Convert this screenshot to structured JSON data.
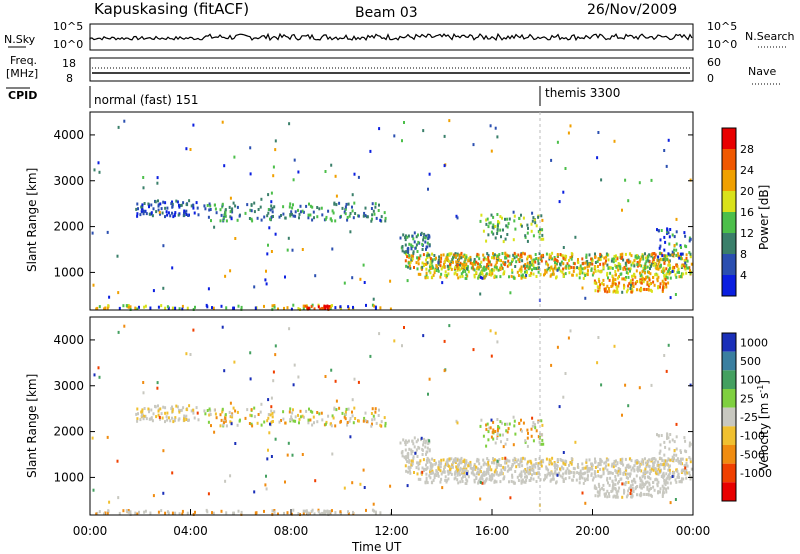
{
  "header": {
    "station": "Kapuskasing (fitACF)",
    "beam": "Beam 03",
    "date": "26/Nov/2009"
  },
  "colors": {
    "power_scale": [
      "#0b1fe0",
      "#2b4fb0",
      "#3a7f6a",
      "#4cbf4a",
      "#d9e21a",
      "#f0a000",
      "#f05800",
      "#e80000"
    ],
    "velocity_scale": [
      "#1a2fb8",
      "#3a7fa0",
      "#44a060",
      "#7fd040",
      "#c8c8c0",
      "#f0c030",
      "#f08c10",
      "#f04000",
      "#e80000"
    ]
  },
  "chart_data": [
    {
      "type": "line",
      "name": "noise-panel",
      "left_label": "N.Sky",
      "right_label": "N.Search",
      "left_ticks": [
        "10^5",
        "10^0"
      ],
      "right_ticks": [
        "10^5",
        "10^0"
      ],
      "x": [
        "00:00",
        "24:00"
      ]
    },
    {
      "type": "line",
      "name": "frequency-panel",
      "left_label_1": "Freq.",
      "left_label_2": "[MHz]",
      "right_label": "Nave",
      "left_ticks": [
        "18",
        "8"
      ],
      "right_ticks": [
        "60",
        "0"
      ]
    },
    {
      "type": "table",
      "name": "cpid-panel",
      "label": "CPID",
      "segments": [
        {
          "start_hour": 0,
          "text": "normal (fast) 151"
        },
        {
          "start_hour": 18,
          "text": "themis 3300"
        }
      ]
    },
    {
      "type": "heatmap",
      "name": "power-panel",
      "ylabel": "Slant Range [km]",
      "y_ticks": [
        1000,
        2000,
        3000,
        4000
      ],
      "ylim": [
        180,
        4500
      ],
      "colorbar_label": "Power [dB]",
      "colorbar_ticks": [
        4,
        8,
        12,
        16,
        20,
        24,
        28
      ]
    },
    {
      "type": "heatmap",
      "name": "velocity-panel",
      "ylabel": "Slant Range [km]",
      "y_ticks": [
        1000,
        2000,
        3000,
        4000
      ],
      "ylim": [
        180,
        4500
      ],
      "xlabel": "Time UT",
      "x_ticks": [
        "00:00",
        "04:00",
        "08:00",
        "12:00",
        "16:00",
        "20:00",
        "00:00"
      ],
      "xlim_hours": [
        0,
        24
      ],
      "colorbar_label": "Velocity [m s",
      "colorbar_label_sup": "-1",
      "colorbar_label_end": "]",
      "colorbar_ticks": [
        "1000",
        "500",
        "100",
        "25",
        "-25",
        "-100",
        "-500",
        "-1000"
      ]
    }
  ]
}
